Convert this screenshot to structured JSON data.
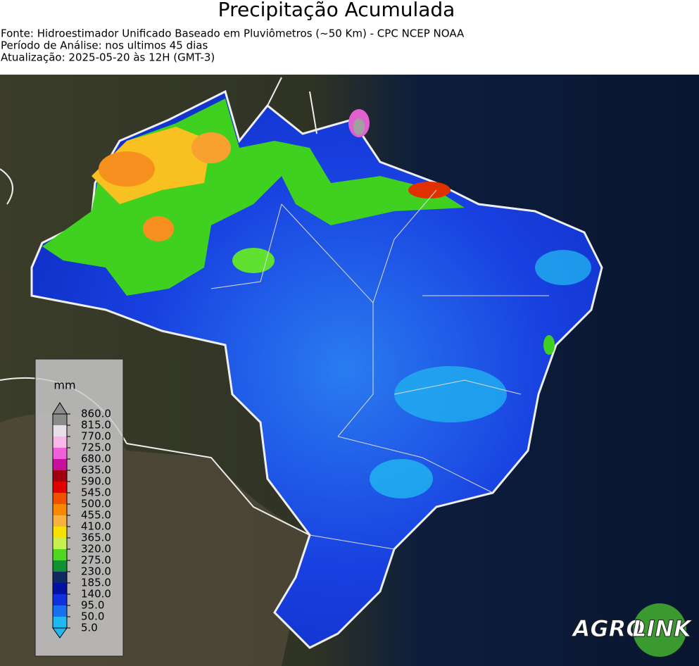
{
  "header": {
    "title": "Precipitação Acumulada",
    "lines": [
      "Fonte: Hidroestimador Unificado Baseado em Pluviômetros (~50 Km) - CPC NCEP NOAA",
      "Período de Análise: nos ultimos 45 dias",
      "Atualização: 2025-05-20 às 12H (GMT-3)"
    ]
  },
  "legend": {
    "unit": "mm",
    "labels": [
      "860.0",
      "815.0",
      "770.0",
      "725.0",
      "680.0",
      "635.0",
      "590.0",
      "545.0",
      "500.0",
      "455.0",
      "410.0",
      "365.0",
      "320.0",
      "275.0",
      "230.0",
      "185.0",
      "140.0",
      "95.0",
      "50.0",
      "5.0"
    ],
    "colors": [
      "#8c8c8c",
      "#e8e0e8",
      "#f8b8e8",
      "#f060d8",
      "#c8109c",
      "#a00010",
      "#e00000",
      "#f05000",
      "#f88800",
      "#f8b040",
      "#f8e000",
      "#c8f050",
      "#50d820",
      "#109030",
      "#102a60",
      "#0010a0",
      "#1030e0",
      "#1870f0",
      "#20b8f0"
    ]
  },
  "logo": {
    "part1": "AGRO",
    "part2": "LINK"
  }
}
